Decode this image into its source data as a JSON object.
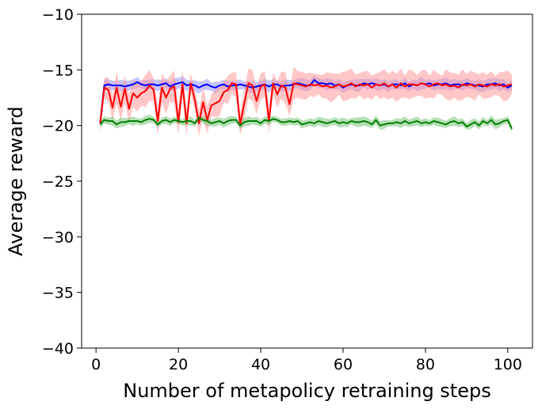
{
  "chart_data": {
    "type": "line",
    "title": "",
    "xlabel": "Number of metapolicy retraining steps",
    "ylabel": "Average reward",
    "xlim": [
      -3.5,
      106
    ],
    "ylim": [
      -40,
      -10
    ],
    "xticks": [
      0,
      20,
      40,
      60,
      80,
      100
    ],
    "yticks": [
      -40,
      -35,
      -30,
      -25,
      -20,
      -15,
      -10
    ],
    "xtick_labels": [
      "0",
      "20",
      "40",
      "60",
      "80",
      "100"
    ],
    "ytick_labels": [
      "−40",
      "−35",
      "−30",
      "−25",
      "−20",
      "−15",
      "−10"
    ],
    "grid": false,
    "legend": null,
    "series": [
      {
        "color": "#0000ff",
        "band_color": "#8080ff",
        "band_opacity": 0.45,
        "x_start": 1,
        "x_step": 1,
        "values": [
          -19.8,
          -16.4,
          -16.3,
          -16.4,
          -16.4,
          -16.4,
          -16.5,
          -16.4,
          -16.3,
          -16.1,
          -16.3,
          -16.4,
          -16.3,
          -16.3,
          -16.4,
          -16.3,
          -16.2,
          -16.5,
          -16.3,
          -16.2,
          -16.1,
          -16.4,
          -16.3,
          -16.4,
          -16.6,
          -16.4,
          -16.3,
          -16.5,
          -16.6,
          -16.4,
          -16.3,
          -16.5,
          -16.4,
          -16.4,
          -16.3,
          -16.4,
          -16.5,
          -16.6,
          -16.5,
          -16.4,
          -16.3,
          -16.5,
          -16.3,
          -16.3,
          -16.5,
          -16.4,
          -16.4,
          -16.3,
          -16.2,
          -16.3,
          -16.4,
          -16.4,
          -15.9,
          -16.2,
          -16.2,
          -16.3,
          -16.2,
          -16.4,
          -16.3,
          -16.6,
          -16.4,
          -16.3,
          -16.4,
          -16.4,
          -16.2,
          -16.3,
          -16.2,
          -16.3,
          -16.4,
          -16.3,
          -16.5,
          -16.3,
          -16.3,
          -16.4,
          -16.2,
          -16.5,
          -16.3,
          -16.4,
          -16.2,
          -16.3,
          -16.2,
          -16.4,
          -16.3,
          -16.3,
          -16.2,
          -16.4,
          -16.3,
          -16.3,
          -16.4,
          -16.2,
          -16.3,
          -16.4,
          -16.4,
          -16.5,
          -16.3,
          -16.3,
          -16.2,
          -16.4,
          -16.3,
          -16.6,
          -16.4
        ],
        "band_width": 0.45
      },
      {
        "color": "#ff0000",
        "band_color": "#ff9090",
        "band_opacity": 0.5,
        "x_start": 1,
        "x_step": 1,
        "values": [
          -19.8,
          -16.6,
          -16.8,
          -18.4,
          -16.6,
          -18.3,
          -16.7,
          -18.5,
          -17.1,
          -17.5,
          -17.1,
          -16.9,
          -16.4,
          -16.8,
          -19.6,
          -16.6,
          -17.5,
          -16.7,
          -16.5,
          -19.7,
          -16.3,
          -19.8,
          -16.2,
          -17.7,
          -19.8,
          -17.9,
          -19.5,
          -18.2,
          -18.0,
          -17.8,
          -17.0,
          -16.8,
          -16.2,
          -16.3,
          -19.9,
          -18.0,
          -16.2,
          -16.4,
          -17.8,
          -16.5,
          -16.3,
          -19.6,
          -16.2,
          -17.2,
          -16.4,
          -16.6,
          -18.1,
          -16.2,
          -16.3,
          -16.4,
          -16.5,
          -16.3,
          -16.4,
          -16.3,
          -16.5,
          -16.4,
          -16.6,
          -16.5,
          -16.3,
          -16.5,
          -16.4,
          -16.2,
          -16.5,
          -16.3,
          -16.4,
          -16.3,
          -16.6,
          -16.3,
          -16.4,
          -16.2,
          -16.5,
          -16.3,
          -16.6,
          -16.2,
          -16.5,
          -16.3,
          -16.3,
          -16.4,
          -16.2,
          -16.3,
          -16.5,
          -16.3,
          -16.2,
          -16.4,
          -16.3,
          -16.5,
          -16.4,
          -16.6,
          -16.3,
          -16.4,
          -16.3,
          -16.5,
          -16.3,
          -16.4,
          -16.5,
          -16.3,
          -16.4,
          -16.3,
          -16.5,
          -16.4,
          -16.3
        ],
        "band_width_early": 1.2,
        "band_width_late": 1.1,
        "band_switch_x": 48
      },
      {
        "color": "#008000",
        "band_color": "#70c070",
        "band_opacity": 0.5,
        "x_start": 1,
        "x_step": 1,
        "values": [
          -19.9,
          -19.5,
          -19.6,
          -19.6,
          -19.9,
          -19.7,
          -19.7,
          -19.6,
          -19.6,
          -19.6,
          -19.7,
          -19.5,
          -19.4,
          -19.5,
          -19.9,
          -19.6,
          -19.5,
          -19.7,
          -19.5,
          -19.6,
          -19.7,
          -19.6,
          -19.6,
          -19.8,
          -19.3,
          -19.5,
          -19.6,
          -19.8,
          -19.7,
          -19.6,
          -19.8,
          -19.6,
          -19.5,
          -19.5,
          -20.0,
          -19.7,
          -19.6,
          -19.6,
          -19.6,
          -19.8,
          -19.5,
          -19.6,
          -19.4,
          -19.5,
          -19.7,
          -19.7,
          -19.6,
          -19.7,
          -19.6,
          -19.9,
          -19.8,
          -19.7,
          -19.8,
          -19.6,
          -19.7,
          -19.8,
          -19.7,
          -19.6,
          -19.8,
          -19.7,
          -19.8,
          -19.6,
          -19.7,
          -19.7,
          -19.6,
          -19.7,
          -19.9,
          -19.5,
          -20.0,
          -19.9,
          -19.8,
          -19.8,
          -19.7,
          -19.8,
          -19.6,
          -19.8,
          -19.7,
          -19.6,
          -19.8,
          -19.7,
          -19.8,
          -19.6,
          -19.7,
          -19.8,
          -19.9,
          -19.7,
          -19.6,
          -19.8,
          -19.7,
          -20.1,
          -19.9,
          -19.7,
          -20.0,
          -19.6,
          -19.8,
          -19.5,
          -19.9,
          -19.8,
          -19.6,
          -19.5,
          -20.3
        ],
        "band_width": 0.35
      }
    ]
  }
}
